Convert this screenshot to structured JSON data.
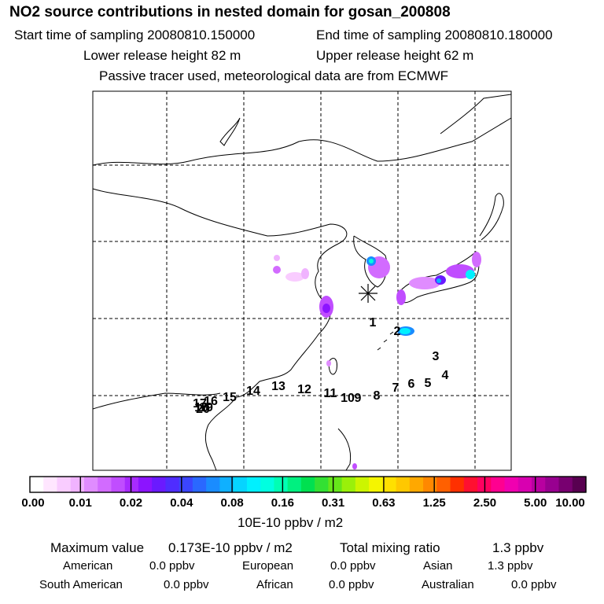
{
  "header": {
    "title": "NO2 source contributions in nested domain for gosan_200808",
    "start_label": "Start time of sampling 20080810.150000",
    "end_label": "End time of sampling 20080810.180000",
    "lower_label": "Lower release height   82 m",
    "upper_label": "Upper release height   62 m",
    "note": "Passive tracer used, meteorological data are from ECMWF"
  },
  "map": {
    "receptor": "gosan",
    "trajectory_labels": [
      "1",
      "2",
      "3",
      "4",
      "5",
      "6",
      "7",
      "8",
      "9",
      "10",
      "11",
      "12",
      "13",
      "14",
      "15",
      "16",
      "17",
      "18",
      "19",
      "20"
    ]
  },
  "colorbar": {
    "ticks": [
      "0.00",
      "0.01",
      "0.02",
      "0.04",
      "0.08",
      "0.16",
      "0.31",
      "0.63",
      "1.25",
      "2.50",
      "5.00",
      "10.00"
    ],
    "unit": "10E-10 ppbv / m2",
    "colors": [
      "#ffffff",
      "#ffe6ff",
      "#f9ccff",
      "#f0b3ff",
      "#e08cff",
      "#d26bff",
      "#c04dff",
      "#a82bff",
      "#8c14ff",
      "#6a1aff",
      "#4f2dff",
      "#3b45ff",
      "#2a68ff",
      "#1a8cff",
      "#0fb0ff",
      "#06d4ff",
      "#00f0ff",
      "#00ffe0",
      "#00ffb4",
      "#00f080",
      "#00e050",
      "#33e033",
      "#66e61a",
      "#9af00a",
      "#ccf500",
      "#f5f500",
      "#ffe000",
      "#ffc800",
      "#ffa800",
      "#ff8800",
      "#ff6000",
      "#ff3000",
      "#ff1030",
      "#ff0060",
      "#ff0090",
      "#f000b0",
      "#d800b0",
      "#b800a0",
      "#980090",
      "#780070",
      "#580050"
    ]
  },
  "stats": {
    "max_label": "Maximum value",
    "max_value": "0.173E-10 ppbv / m2",
    "total_label": "Total mixing ratio",
    "total_value": "1.3 ppbv",
    "regions": [
      {
        "name": "American",
        "value": "0.0 ppbv"
      },
      {
        "name": "European",
        "value": "0.0 ppbv"
      },
      {
        "name": "Asian",
        "value": "1.3 ppbv"
      },
      {
        "name": "South American",
        "value": "0.0 ppbv"
      },
      {
        "name": "African",
        "value": "0.0 ppbv"
      },
      {
        "name": "Australian",
        "value": "0.0 ppbv"
      }
    ]
  }
}
